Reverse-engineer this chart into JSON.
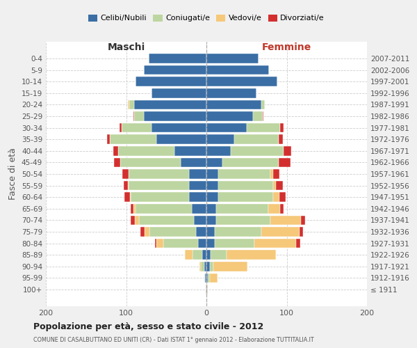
{
  "age_groups": [
    "100+",
    "95-99",
    "90-94",
    "85-89",
    "80-84",
    "75-79",
    "70-74",
    "65-69",
    "60-64",
    "55-59",
    "50-54",
    "45-49",
    "40-44",
    "35-39",
    "30-34",
    "25-29",
    "20-24",
    "15-19",
    "10-14",
    "5-9",
    "0-4"
  ],
  "birth_years": [
    "≤ 1911",
    "1912-1916",
    "1917-1921",
    "1922-1926",
    "1927-1931",
    "1932-1936",
    "1937-1941",
    "1942-1946",
    "1947-1951",
    "1952-1956",
    "1957-1961",
    "1962-1966",
    "1967-1971",
    "1972-1976",
    "1977-1981",
    "1982-1986",
    "1987-1991",
    "1992-1996",
    "1997-2001",
    "2002-2006",
    "2007-2011"
  ],
  "maschi": {
    "celibi": [
      1,
      2,
      3,
      5,
      10,
      13,
      16,
      18,
      22,
      22,
      22,
      32,
      40,
      62,
      68,
      78,
      90,
      68,
      88,
      78,
      72
    ],
    "coniugati": [
      0,
      1,
      4,
      12,
      44,
      58,
      68,
      70,
      72,
      75,
      75,
      75,
      70,
      58,
      38,
      12,
      6,
      0,
      0,
      0,
      0
    ],
    "vedovi": [
      0,
      0,
      2,
      10,
      8,
      6,
      5,
      3,
      1,
      1,
      0,
      0,
      0,
      0,
      0,
      0,
      2,
      0,
      0,
      0,
      0
    ],
    "divorziati": [
      0,
      0,
      0,
      0,
      2,
      5,
      5,
      3,
      7,
      5,
      8,
      8,
      6,
      4,
      2,
      1,
      0,
      0,
      0,
      0,
      0
    ]
  },
  "femmine": {
    "nubili": [
      1,
      2,
      4,
      5,
      10,
      10,
      12,
      12,
      15,
      15,
      15,
      20,
      30,
      35,
      50,
      58,
      68,
      62,
      88,
      78,
      65
    ],
    "coniugate": [
      0,
      2,
      5,
      20,
      50,
      58,
      68,
      65,
      68,
      68,
      65,
      70,
      66,
      55,
      42,
      12,
      5,
      0,
      0,
      0,
      0
    ],
    "vedove": [
      1,
      10,
      42,
      62,
      52,
      48,
      38,
      15,
      8,
      4,
      3,
      0,
      0,
      0,
      0,
      0,
      0,
      0,
      0,
      0,
      0
    ],
    "divorziate": [
      0,
      0,
      0,
      0,
      5,
      4,
      5,
      4,
      8,
      8,
      8,
      15,
      10,
      5,
      4,
      1,
      0,
      0,
      0,
      0,
      0
    ]
  },
  "colors": {
    "celibi_nubili": "#3a6ea5",
    "coniugati": "#bdd5a0",
    "vedovi": "#f5c87a",
    "divorziati": "#d32f2f"
  },
  "xlim": 200,
  "title": "Popolazione per età, sesso e stato civile - 2012",
  "subtitle": "COMUNE DI CASALBUTTANO ED UNITI (CR) - Dati ISTAT 1° gennaio 2012 - Elaborazione TUTTITALIA.IT",
  "ylabel_left": "Fasce di età",
  "label_maschi": "Maschi",
  "label_femmine": "Femmine",
  "bg_color": "#f0f0f0",
  "plot_bg_color": "#ffffff",
  "legend_labels": [
    "Celibi/Nubili",
    "Coniugati/e",
    "Vedovi/e",
    "Divorziati/e"
  ]
}
